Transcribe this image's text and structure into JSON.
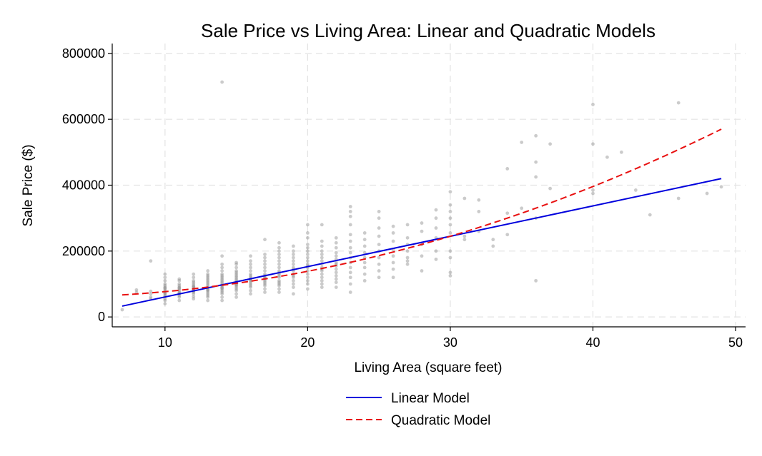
{
  "chart_data": {
    "type": "scatter",
    "title": "Sale Price vs Living Area: Linear and Quadratic Models",
    "xlabel": "Living Area (square feet)",
    "ylabel": "Sale Price ($)",
    "xlim": [
      6.3,
      50.7
    ],
    "ylim": [
      -30000,
      830000
    ],
    "xticks": [
      10,
      20,
      30,
      40,
      50
    ],
    "yticks": [
      0,
      200000,
      400000,
      600000,
      800000
    ],
    "grid": true,
    "legend_position": "bottom-center",
    "points": [
      [
        7,
        22000
      ],
      [
        8,
        75000
      ],
      [
        8,
        82000
      ],
      [
        9,
        170000
      ],
      [
        9,
        78000
      ],
      [
        9,
        70000
      ],
      [
        9,
        60000
      ],
      [
        9,
        55000
      ],
      [
        10,
        40000
      ],
      [
        10,
        50000
      ],
      [
        10,
        55000
      ],
      [
        10,
        62000
      ],
      [
        10,
        70000
      ],
      [
        10,
        75000
      ],
      [
        10,
        80000
      ],
      [
        10,
        85000
      ],
      [
        10,
        90000
      ],
      [
        10,
        95000
      ],
      [
        10,
        100000
      ],
      [
        10,
        110000
      ],
      [
        10,
        120000
      ],
      [
        10,
        130000
      ],
      [
        10,
        65000
      ],
      [
        10,
        72000
      ],
      [
        10,
        88000
      ],
      [
        11,
        50000
      ],
      [
        11,
        60000
      ],
      [
        11,
        65000
      ],
      [
        11,
        70000
      ],
      [
        11,
        75000
      ],
      [
        11,
        80000
      ],
      [
        11,
        85000
      ],
      [
        11,
        90000
      ],
      [
        11,
        95000
      ],
      [
        11,
        100000
      ],
      [
        11,
        110000
      ],
      [
        11,
        115000
      ],
      [
        11,
        72000
      ],
      [
        11,
        88000
      ],
      [
        12,
        55000
      ],
      [
        12,
        62000
      ],
      [
        12,
        70000
      ],
      [
        12,
        75000
      ],
      [
        12,
        80000
      ],
      [
        12,
        85000
      ],
      [
        12,
        90000
      ],
      [
        12,
        95000
      ],
      [
        12,
        100000
      ],
      [
        12,
        105000
      ],
      [
        12,
        110000
      ],
      [
        12,
        120000
      ],
      [
        12,
        130000
      ],
      [
        12,
        78000
      ],
      [
        12,
        92000
      ],
      [
        13,
        50000
      ],
      [
        13,
        60000
      ],
      [
        13,
        65000
      ],
      [
        13,
        70000
      ],
      [
        13,
        75000
      ],
      [
        13,
        80000
      ],
      [
        13,
        85000
      ],
      [
        13,
        90000
      ],
      [
        13,
        95000
      ],
      [
        13,
        100000
      ],
      [
        13,
        105000
      ],
      [
        13,
        110000
      ],
      [
        13,
        115000
      ],
      [
        13,
        120000
      ],
      [
        13,
        125000
      ],
      [
        13,
        130000
      ],
      [
        13,
        140000
      ],
      [
        13,
        82000
      ],
      [
        14,
        50000
      ],
      [
        14,
        60000
      ],
      [
        14,
        70000
      ],
      [
        14,
        75000
      ],
      [
        14,
        80000
      ],
      [
        14,
        85000
      ],
      [
        14,
        90000
      ],
      [
        14,
        95000
      ],
      [
        14,
        100000
      ],
      [
        14,
        105000
      ],
      [
        14,
        110000
      ],
      [
        14,
        115000
      ],
      [
        14,
        120000
      ],
      [
        14,
        125000
      ],
      [
        14,
        130000
      ],
      [
        14,
        140000
      ],
      [
        14,
        150000
      ],
      [
        14,
        160000
      ],
      [
        14,
        185000
      ],
      [
        14,
        713000
      ],
      [
        14,
        88000
      ],
      [
        15,
        60000
      ],
      [
        15,
        70000
      ],
      [
        15,
        80000
      ],
      [
        15,
        85000
      ],
      [
        15,
        90000
      ],
      [
        15,
        95000
      ],
      [
        15,
        100000
      ],
      [
        15,
        105000
      ],
      [
        15,
        110000
      ],
      [
        15,
        115000
      ],
      [
        15,
        120000
      ],
      [
        15,
        125000
      ],
      [
        15,
        130000
      ],
      [
        15,
        135000
      ],
      [
        15,
        140000
      ],
      [
        15,
        150000
      ],
      [
        15,
        160000
      ],
      [
        15,
        165000
      ],
      [
        15,
        98000
      ],
      [
        16,
        70000
      ],
      [
        16,
        80000
      ],
      [
        16,
        90000
      ],
      [
        16,
        95000
      ],
      [
        16,
        100000
      ],
      [
        16,
        105000
      ],
      [
        16,
        110000
      ],
      [
        16,
        115000
      ],
      [
        16,
        120000
      ],
      [
        16,
        125000
      ],
      [
        16,
        130000
      ],
      [
        16,
        140000
      ],
      [
        16,
        150000
      ],
      [
        16,
        160000
      ],
      [
        16,
        170000
      ],
      [
        16,
        185000
      ],
      [
        16,
        112000
      ],
      [
        17,
        75000
      ],
      [
        17,
        85000
      ],
      [
        17,
        95000
      ],
      [
        17,
        100000
      ],
      [
        17,
        105000
      ],
      [
        17,
        110000
      ],
      [
        17,
        115000
      ],
      [
        17,
        120000
      ],
      [
        17,
        125000
      ],
      [
        17,
        130000
      ],
      [
        17,
        140000
      ],
      [
        17,
        150000
      ],
      [
        17,
        160000
      ],
      [
        17,
        170000
      ],
      [
        17,
        180000
      ],
      [
        17,
        190000
      ],
      [
        17,
        235000
      ],
      [
        17,
        118000
      ],
      [
        18,
        75000
      ],
      [
        18,
        85000
      ],
      [
        18,
        95000
      ],
      [
        18,
        100000
      ],
      [
        18,
        105000
      ],
      [
        18,
        110000
      ],
      [
        18,
        120000
      ],
      [
        18,
        125000
      ],
      [
        18,
        130000
      ],
      [
        18,
        140000
      ],
      [
        18,
        150000
      ],
      [
        18,
        160000
      ],
      [
        18,
        170000
      ],
      [
        18,
        180000
      ],
      [
        18,
        190000
      ],
      [
        18,
        200000
      ],
      [
        18,
        210000
      ],
      [
        18,
        225000
      ],
      [
        18,
        135000
      ],
      [
        19,
        70000
      ],
      [
        19,
        90000
      ],
      [
        19,
        100000
      ],
      [
        19,
        110000
      ],
      [
        19,
        120000
      ],
      [
        19,
        125000
      ],
      [
        19,
        130000
      ],
      [
        19,
        140000
      ],
      [
        19,
        150000
      ],
      [
        19,
        160000
      ],
      [
        19,
        170000
      ],
      [
        19,
        180000
      ],
      [
        19,
        190000
      ],
      [
        19,
        200000
      ],
      [
        19,
        215000
      ],
      [
        19,
        145000
      ],
      [
        20,
        85000
      ],
      [
        20,
        100000
      ],
      [
        20,
        110000
      ],
      [
        20,
        120000
      ],
      [
        20,
        130000
      ],
      [
        20,
        140000
      ],
      [
        20,
        150000
      ],
      [
        20,
        160000
      ],
      [
        20,
        170000
      ],
      [
        20,
        180000
      ],
      [
        20,
        190000
      ],
      [
        20,
        200000
      ],
      [
        20,
        210000
      ],
      [
        20,
        220000
      ],
      [
        20,
        240000
      ],
      [
        20,
        255000
      ],
      [
        20,
        280000
      ],
      [
        20,
        155000
      ],
      [
        21,
        90000
      ],
      [
        21,
        100000
      ],
      [
        21,
        110000
      ],
      [
        21,
        120000
      ],
      [
        21,
        130000
      ],
      [
        21,
        140000
      ],
      [
        21,
        150000
      ],
      [
        21,
        160000
      ],
      [
        21,
        170000
      ],
      [
        21,
        180000
      ],
      [
        21,
        190000
      ],
      [
        21,
        200000
      ],
      [
        21,
        215000
      ],
      [
        21,
        230000
      ],
      [
        21,
        280000
      ],
      [
        21,
        145000
      ],
      [
        22,
        90000
      ],
      [
        22,
        105000
      ],
      [
        22,
        115000
      ],
      [
        22,
        125000
      ],
      [
        22,
        135000
      ],
      [
        22,
        145000
      ],
      [
        22,
        155000
      ],
      [
        22,
        165000
      ],
      [
        22,
        175000
      ],
      [
        22,
        185000
      ],
      [
        22,
        195000
      ],
      [
        22,
        210000
      ],
      [
        22,
        225000
      ],
      [
        22,
        240000
      ],
      [
        22,
        160000
      ],
      [
        23,
        75000
      ],
      [
        23,
        100000
      ],
      [
        23,
        120000
      ],
      [
        23,
        135000
      ],
      [
        23,
        150000
      ],
      [
        23,
        165000
      ],
      [
        23,
        180000
      ],
      [
        23,
        195000
      ],
      [
        23,
        210000
      ],
      [
        23,
        230000
      ],
      [
        23,
        250000
      ],
      [
        23,
        280000
      ],
      [
        23,
        305000
      ],
      [
        23,
        320000
      ],
      [
        23,
        335000
      ],
      [
        24,
        110000
      ],
      [
        24,
        130000
      ],
      [
        24,
        150000
      ],
      [
        24,
        165000
      ],
      [
        24,
        180000
      ],
      [
        24,
        195000
      ],
      [
        24,
        215000
      ],
      [
        24,
        235000
      ],
      [
        24,
        255000
      ],
      [
        25,
        120000
      ],
      [
        25,
        140000
      ],
      [
        25,
        160000
      ],
      [
        25,
        180000
      ],
      [
        25,
        200000
      ],
      [
        25,
        220000
      ],
      [
        25,
        245000
      ],
      [
        25,
        270000
      ],
      [
        25,
        300000
      ],
      [
        25,
        320000
      ],
      [
        26,
        120000
      ],
      [
        26,
        145000
      ],
      [
        26,
        165000
      ],
      [
        26,
        185000
      ],
      [
        26,
        205000
      ],
      [
        26,
        230000
      ],
      [
        26,
        255000
      ],
      [
        26,
        275000
      ],
      [
        27,
        160000
      ],
      [
        27,
        170000
      ],
      [
        27,
        180000
      ],
      [
        27,
        200000
      ],
      [
        27,
        220000
      ],
      [
        27,
        240000
      ],
      [
        27,
        280000
      ],
      [
        28,
        140000
      ],
      [
        28,
        185000
      ],
      [
        28,
        220000
      ],
      [
        28,
        260000
      ],
      [
        28,
        285000
      ],
      [
        29,
        175000
      ],
      [
        29,
        200000
      ],
      [
        29,
        240000
      ],
      [
        29,
        270000
      ],
      [
        29,
        300000
      ],
      [
        29,
        325000
      ],
      [
        30,
        125000
      ],
      [
        30,
        135000
      ],
      [
        30,
        180000
      ],
      [
        30,
        200000
      ],
      [
        30,
        255000
      ],
      [
        30,
        280000
      ],
      [
        30,
        300000
      ],
      [
        30,
        320000
      ],
      [
        30,
        340000
      ],
      [
        30,
        380000
      ],
      [
        31,
        235000
      ],
      [
        31,
        245000
      ],
      [
        31,
        360000
      ],
      [
        32,
        260000
      ],
      [
        32,
        320000
      ],
      [
        32,
        355000
      ],
      [
        33,
        215000
      ],
      [
        33,
        235000
      ],
      [
        34,
        250000
      ],
      [
        34,
        315000
      ],
      [
        34,
        450000
      ],
      [
        35,
        330000
      ],
      [
        35,
        530000
      ],
      [
        36,
        110000
      ],
      [
        36,
        300000
      ],
      [
        36,
        425000
      ],
      [
        36,
        470000
      ],
      [
        36,
        550000
      ],
      [
        37,
        390000
      ],
      [
        37,
        525000
      ],
      [
        40,
        375000
      ],
      [
        40,
        385000
      ],
      [
        40,
        525000
      ],
      [
        40,
        645000
      ],
      [
        41,
        485000
      ],
      [
        42,
        500000
      ],
      [
        43,
        385000
      ],
      [
        44,
        310000
      ],
      [
        46,
        360000
      ],
      [
        46,
        650000
      ],
      [
        48,
        375000
      ],
      [
        49,
        395000
      ]
    ],
    "series": [
      {
        "name": "Linear Model",
        "color": "#0000dd",
        "style": "solid",
        "model": "linear",
        "x_range": [
          7,
          49
        ],
        "y_range": [
          33000,
          420000
        ]
      },
      {
        "name": "Quadratic Model",
        "color": "#e81010",
        "style": "dashed",
        "model": "quadratic",
        "x_range": [
          7,
          49
        ],
        "y_at": [
          [
            7,
            67000
          ],
          [
            30,
            245000
          ],
          [
            49,
            570000
          ]
        ]
      }
    ]
  }
}
